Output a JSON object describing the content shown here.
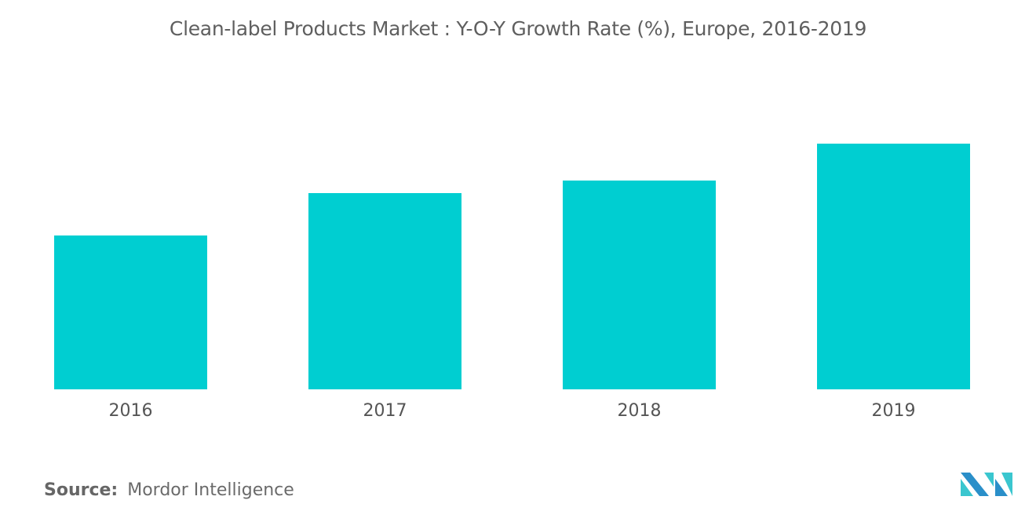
{
  "title": "Clean-label Products Market : Y-O-Y Growth Rate (%), Europe, 2016-2019",
  "source_label": "Source:",
  "source_value": "Mordor Intelligence",
  "logo_text": "Mordor Intelligence",
  "chart_data": {
    "type": "bar",
    "title": "Clean-label Products Market : Y-O-Y Growth Rate (%), Europe, 2016-2019",
    "categories": [
      "2016",
      "2017",
      "2018",
      "2019"
    ],
    "values": [
      196,
      250,
      266,
      313
    ],
    "value_note": "relative bar heights; no y-axis values printed",
    "xlabel": "",
    "ylabel": "",
    "ylim": [
      0,
      313
    ],
    "grid": false,
    "legend": "none",
    "bar_color": "#00CED1"
  }
}
